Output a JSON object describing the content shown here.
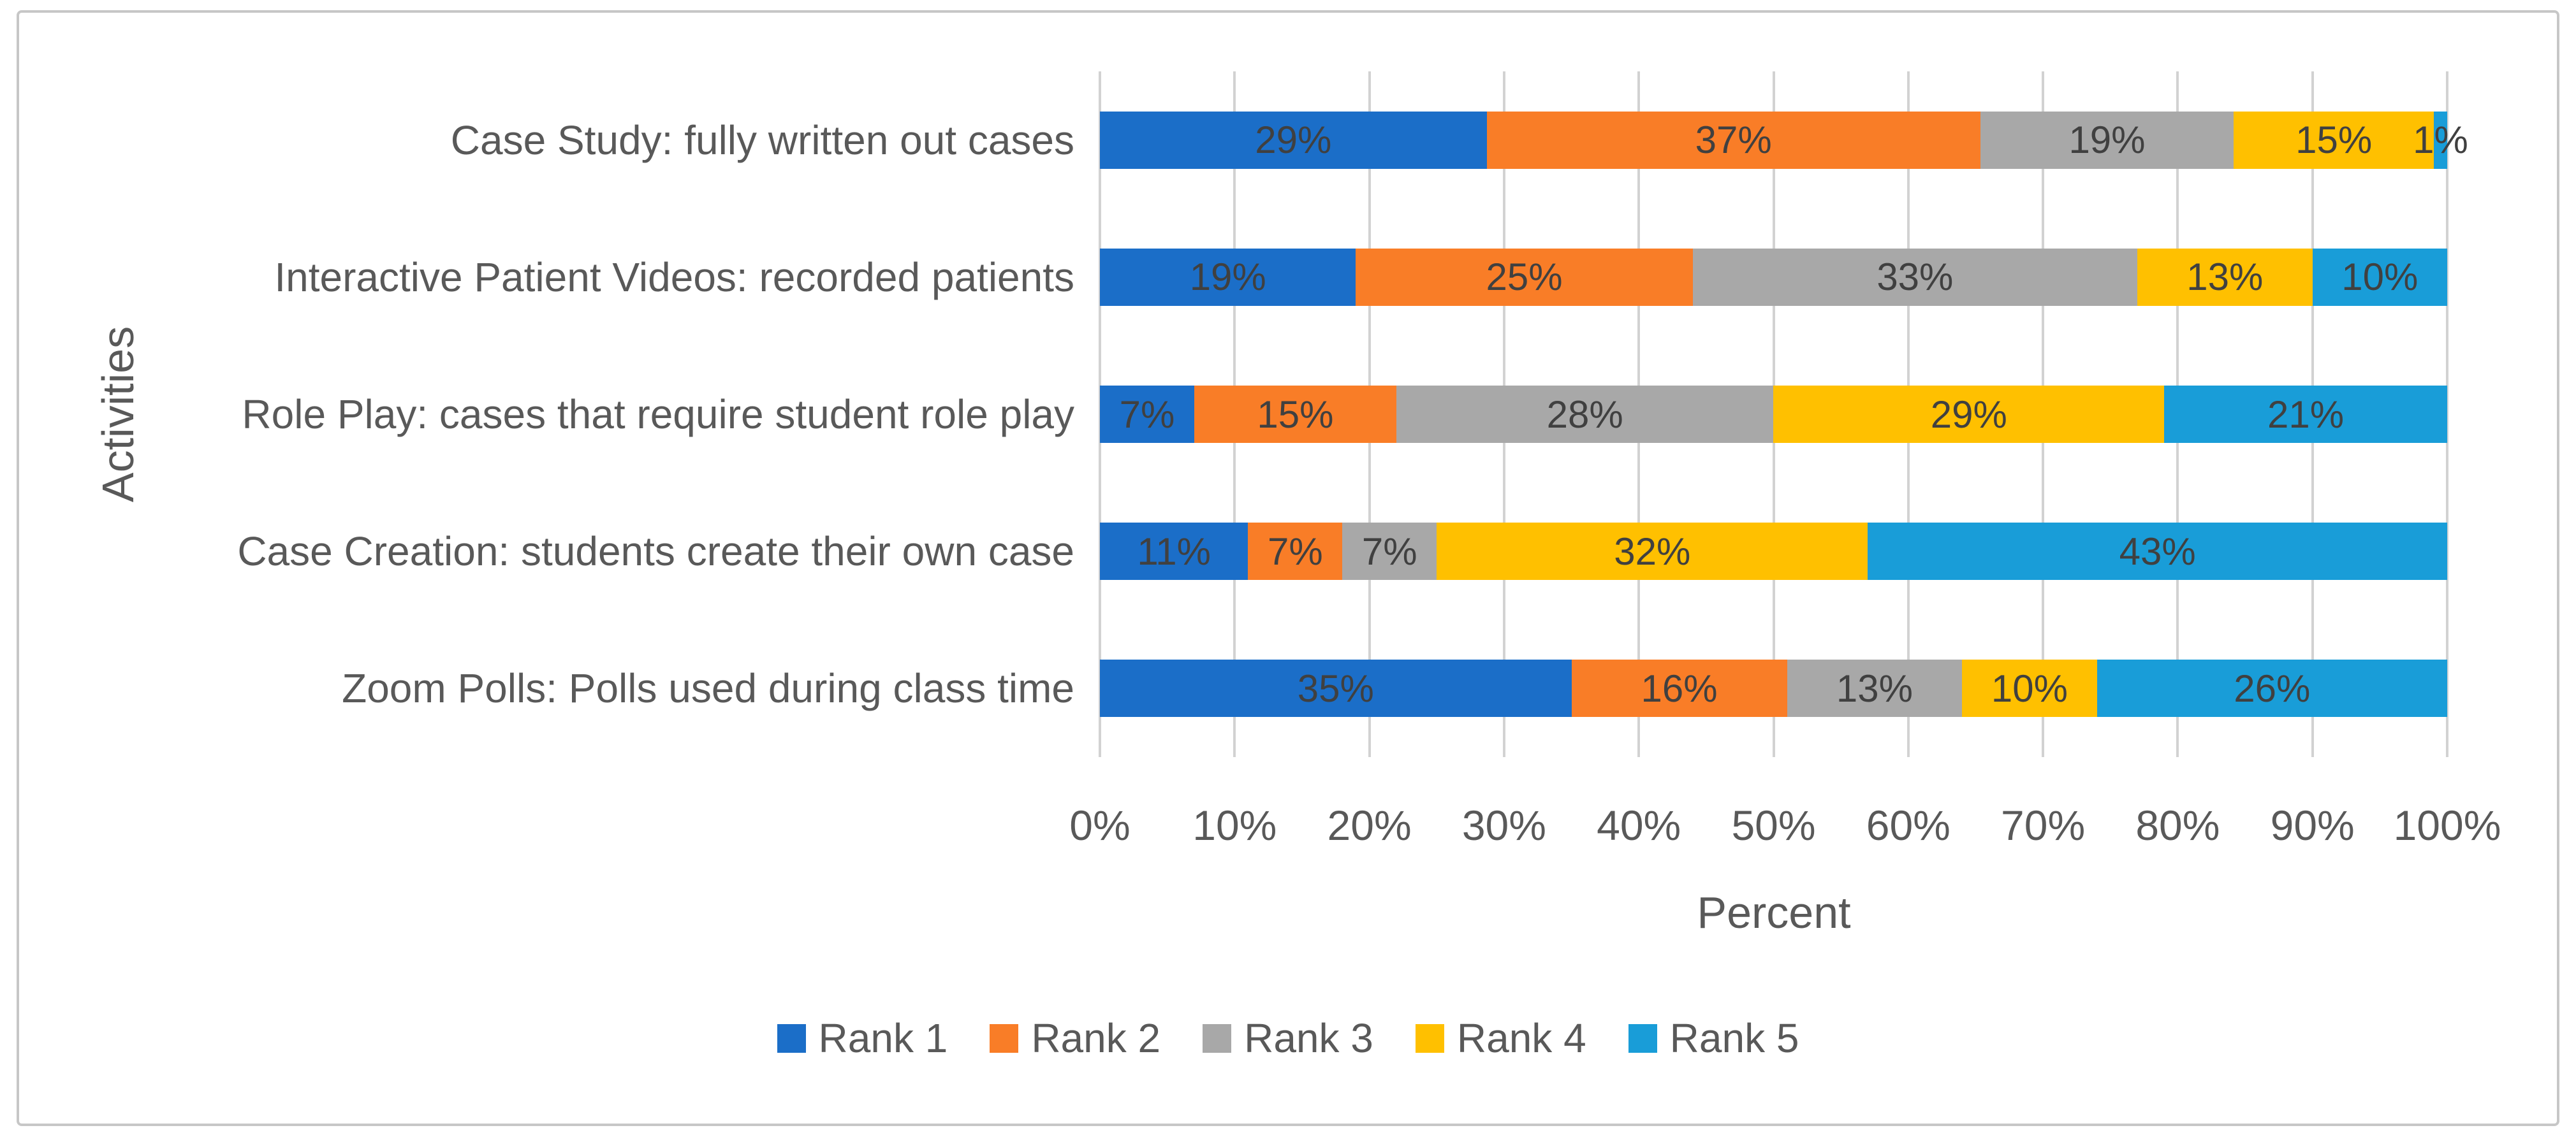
{
  "chart_data": {
    "type": "bar",
    "orientation": "horizontal",
    "stacked": true,
    "title": "",
    "xlabel": "Percent",
    "ylabel": "Activities",
    "xlim": [
      0,
      100
    ],
    "x_tick_labels": [
      "0%",
      "10%",
      "20%",
      "30%",
      "40%",
      "50%",
      "60%",
      "70%",
      "80%",
      "90%",
      "100%"
    ],
    "grid": "vertical",
    "legend_position": "bottom",
    "data_label_format": "{value}%",
    "categories": [
      "Case Study: fully written out cases",
      "Interactive Patient Videos: recorded patients",
      "Role Play: cases that require student role play",
      "Case Creation: students create their own case",
      "Zoom Polls: Polls used during class time"
    ],
    "series": [
      {
        "name": "Rank 1",
        "color": "#1B6EC8",
        "values": [
          29,
          19,
          7,
          11,
          35
        ]
      },
      {
        "name": "Rank 2",
        "color": "#F97D27",
        "values": [
          37,
          25,
          15,
          7,
          16
        ]
      },
      {
        "name": "Rank 3",
        "color": "#A8A8A8",
        "values": [
          19,
          33,
          28,
          7,
          13
        ]
      },
      {
        "name": "Rank 4",
        "color": "#FFC000",
        "values": [
          15,
          13,
          29,
          32,
          10
        ]
      },
      {
        "name": "Rank 5",
        "color": "#199DD8",
        "values": [
          1,
          10,
          21,
          43,
          26
        ]
      }
    ]
  },
  "colors": {
    "background": "#FFFFFF",
    "frame_border": "#C7C7C7",
    "gridline": "#D2D2D2",
    "data_label_text": "#404040",
    "axis_text": "#595959"
  }
}
